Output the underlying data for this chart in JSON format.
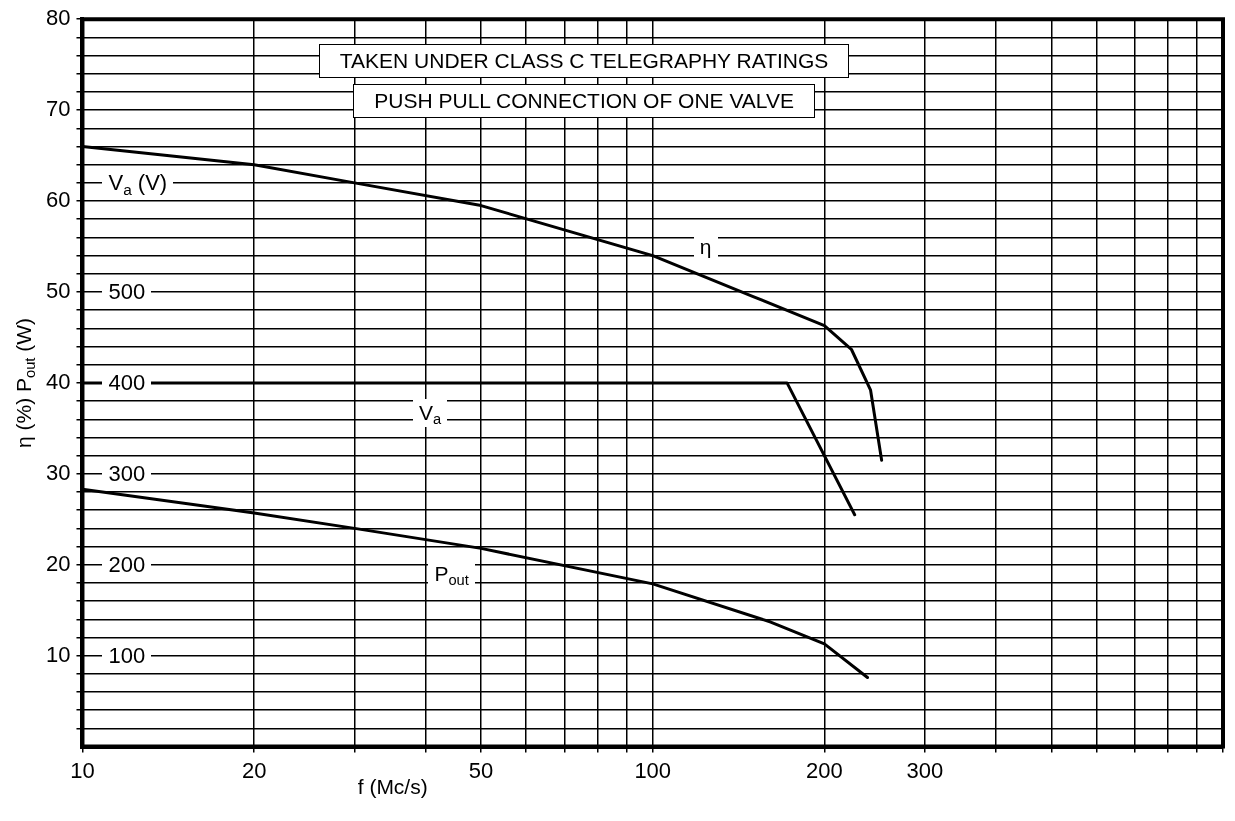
{
  "chart_data": {
    "type": "line",
    "title": "TAKEN  UNDER  CLASS  C  TELEGRAPHY  RATINGS",
    "subtitle": "PUSH  PULL  CONNECTION  OF  ONE  VALVE",
    "xlabel": "f  (Mc/s)",
    "ylabel": "η  (%)  P$_{out}$  (W)",
    "y2label": "V$_{a}$  (V)",
    "log": "x",
    "grid": true,
    "legend": false,
    "marker": "none",
    "line_style": "solid",
    "xlim": [
      10,
      1000
    ],
    "xticks": [
      10,
      20,
      {
        "value": 30,
        "label": null
      },
      {
        "value": 40,
        "label": null
      },
      50,
      {
        "value": 60,
        "label": null
      },
      {
        "value": 70,
        "label": null
      },
      {
        "value": 80,
        "label": null
      },
      {
        "value": 90,
        "label": null
      },
      100,
      200,
      300,
      {
        "value": 400,
        "label": null
      },
      {
        "value": 500,
        "label": null
      },
      {
        "value": 600,
        "label": null
      },
      {
        "value": 700,
        "label": null
      },
      {
        "value": 800,
        "label": null
      },
      {
        "value": 900,
        "label": null
      },
      {
        "value": 1000,
        "label": null
      }
    ],
    "ylim": [
      0,
      80
    ],
    "yticks": [
      {
        "value": 2,
        "label": null
      },
      {
        "value": 4,
        "label": null
      },
      {
        "value": 6,
        "label": null
      },
      {
        "value": 8,
        "label": null
      },
      10,
      {
        "value": 12,
        "label": null
      },
      {
        "value": 14,
        "label": null
      },
      {
        "value": 16,
        "label": null
      },
      {
        "value": 18,
        "label": null
      },
      20,
      {
        "value": 22,
        "label": null
      },
      {
        "value": 24,
        "label": null
      },
      {
        "value": 26,
        "label": null
      },
      {
        "value": 28,
        "label": null
      },
      30,
      {
        "value": 32,
        "label": null
      },
      {
        "value": 34,
        "label": null
      },
      {
        "value": 36,
        "label": null
      },
      {
        "value": 38,
        "label": null
      },
      40,
      {
        "value": 42,
        "label": null
      },
      {
        "value": 44,
        "label": null
      },
      {
        "value": 46,
        "label": null
      },
      {
        "value": 48,
        "label": null
      },
      50,
      {
        "value": 52,
        "label": null
      },
      {
        "value": 54,
        "label": null
      },
      {
        "value": 56,
        "label": null
      },
      {
        "value": 58,
        "label": null
      },
      60,
      {
        "value": 62,
        "label": null
      },
      {
        "value": 64,
        "label": null
      },
      {
        "value": 66,
        "label": null
      },
      {
        "value": 68,
        "label": null
      },
      70,
      {
        "value": 72,
        "label": null
      },
      {
        "value": 74,
        "label": null
      },
      {
        "value": 76,
        "label": null
      },
      {
        "value": 78,
        "label": null
      },
      80
    ],
    "y2lim": [
      0,
      800
    ],
    "y2ticks": [
      100,
      200,
      300,
      400,
      500
    ],
    "series": [
      {
        "name": "η",
        "color": "#000000",
        "x": [
          10,
          20,
          30,
          50,
          100,
          150,
          200,
          223,
          241,
          252
        ],
        "values": [
          66,
          64,
          62,
          59.5,
          54,
          49.5,
          46.3,
          43.7,
          39.2,
          31.5
        ]
      },
      {
        "name": "V$_{a}$",
        "color": "#000000",
        "axis": "y2",
        "x": [
          10,
          172,
          226
        ],
        "values": [
          400,
          400,
          255
        ]
      },
      {
        "name": "P$_{out}$",
        "color": "#000000",
        "x": [
          10,
          20,
          30,
          50,
          100,
          161,
          200,
          238
        ],
        "values": [
          28.3,
          25.7,
          24,
          21.8,
          17.9,
          13.7,
          11.3,
          7.6
        ]
      }
    ]
  }
}
